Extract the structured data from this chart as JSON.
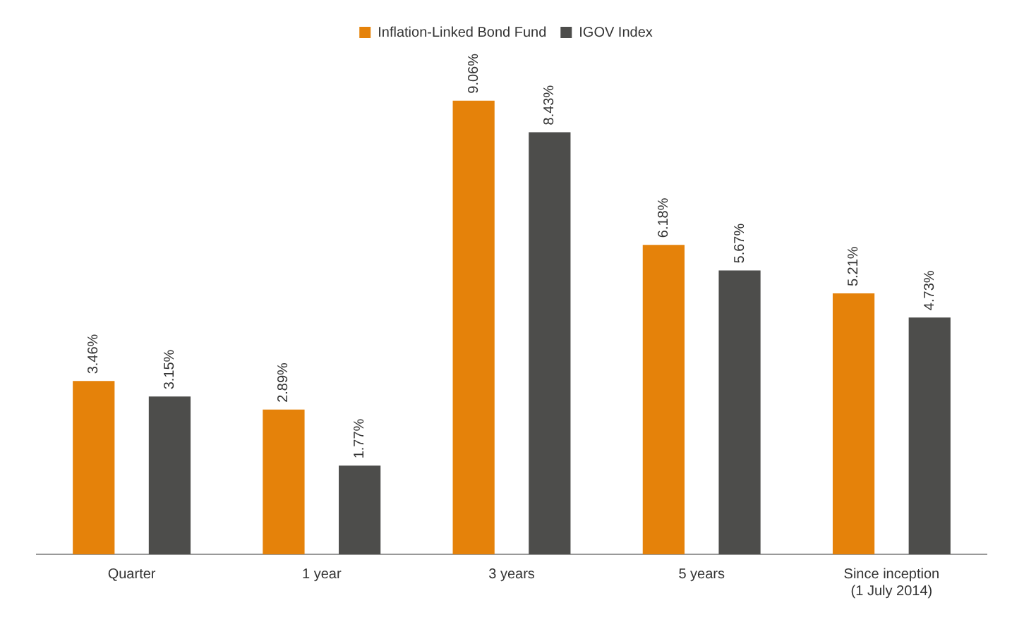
{
  "chart_data": {
    "type": "bar",
    "categories": [
      "Quarter",
      "1 year",
      "3 years",
      "5 years",
      "Since inception\n(1 July 2014)"
    ],
    "series": [
      {
        "name": "Inflation-Linked Bond Fund",
        "color": "#e5820a",
        "values": [
          3.46,
          2.89,
          9.06,
          6.18,
          5.21
        ],
        "value_labels": [
          "3.46%",
          "2.89%",
          "9.06%",
          "6.18%",
          "5.21%"
        ]
      },
      {
        "name": "IGOV Index",
        "color": "#4d4d4b",
        "values": [
          3.15,
          1.77,
          8.43,
          5.67,
          4.73
        ],
        "value_labels": [
          "3.15%",
          "1.77%",
          "8.43%",
          "5.67%",
          "4.73%"
        ]
      }
    ],
    "relative": false,
    "grid": false,
    "legend": "top"
  }
}
